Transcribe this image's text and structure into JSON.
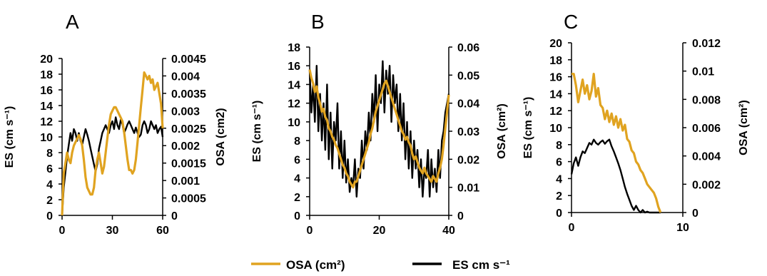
{
  "colors": {
    "osa": "#E0A320",
    "es": "#000000",
    "axis": "#000000"
  },
  "legend": {
    "osa_label": "OSA (cm²)",
    "es_label": "ES cm s⁻¹"
  },
  "chart_data": [
    {
      "type": "line",
      "panel_label": "A",
      "xlabel": "",
      "ylabel_left": "ES (cm s⁻¹)",
      "ylabel_right": "OSA (cm2)",
      "xlim": [
        0,
        60
      ],
      "ylim_left": [
        0,
        20
      ],
      "ylim_right": [
        0,
        0.0045
      ],
      "x_ticks": [
        "0",
        "30",
        "60"
      ],
      "y_left_ticks": [
        "0",
        "2",
        "4",
        "6",
        "8",
        "10",
        "12",
        "14",
        "16",
        "18",
        "20"
      ],
      "y_right_ticks": [
        "0",
        "0.0005",
        "0.001",
        "0.0015",
        "0.002",
        "0.0025",
        "0.003",
        "0.0035",
        "0.004",
        "0.0045"
      ],
      "series": [
        {
          "name": "ES cm s⁻¹",
          "axis": "left",
          "color": "#000000",
          "x": [
            0,
            1,
            2,
            3,
            4,
            5,
            6,
            7,
            8,
            9,
            10,
            11,
            12,
            13,
            14,
            15,
            16,
            17,
            18,
            19,
            20,
            21,
            22,
            23,
            24,
            25,
            26,
            27,
            28,
            29,
            30,
            31,
            32,
            33,
            34,
            35,
            36,
            37,
            38,
            39,
            40,
            41,
            42,
            43,
            44,
            45,
            46,
            47,
            48,
            49,
            50,
            51,
            52,
            53,
            54,
            55,
            56,
            57,
            58,
            59,
            60
          ],
          "y": [
            0,
            3.5,
            5.5,
            7.5,
            9,
            10.5,
            9.5,
            11,
            10.5,
            9.5,
            10.5,
            9.5,
            9.0,
            10.0,
            11.0,
            10.3,
            9.5,
            8.5,
            7.5,
            6.5,
            5.6,
            6.5,
            8.5,
            9.5,
            10.5,
            11.0,
            11.5,
            11.0,
            10.5,
            11.5,
            12.0,
            11.0,
            12.5,
            11.5,
            11.0,
            12.2,
            11.6,
            10.5,
            11.0,
            11.6,
            12.0,
            11.5,
            11.0,
            10.5,
            11.2,
            10.5,
            10.0,
            10.3,
            11.5,
            12.0,
            11.5,
            10.5,
            11.0,
            12.0,
            11.5,
            11.0,
            11.5,
            10.5,
            11.0,
            11.3,
            10.0
          ]
        },
        {
          "name": "OSA (cm²)",
          "axis": "right",
          "color": "#E0A320",
          "x": [
            0,
            1,
            2,
            3,
            4,
            5,
            6,
            7,
            8,
            9,
            10,
            11,
            12,
            13,
            14,
            15,
            16,
            17,
            18,
            19,
            20,
            21,
            22,
            23,
            24,
            25,
            26,
            27,
            28,
            29,
            30,
            31,
            32,
            33,
            34,
            35,
            36,
            37,
            38,
            39,
            40,
            41,
            42,
            43,
            44,
            45,
            46,
            47,
            48,
            49,
            50,
            51,
            52,
            53,
            54,
            55,
            56,
            57,
            58,
            59,
            60
          ],
          "y": [
            0,
            0.0012,
            0.0015,
            0.0018,
            0.0016,
            0.0015,
            0.0018,
            0.002,
            0.0021,
            0.0022,
            0.0023,
            0.0022,
            0.002,
            0.0016,
            0.0011,
            0.0008,
            0.0007,
            0.0006,
            0.0006,
            0.0008,
            0.0013,
            0.0016,
            0.0018,
            0.0015,
            0.0012,
            0.0014,
            0.0018,
            0.0022,
            0.0026,
            0.0029,
            0.003,
            0.0031,
            0.0031,
            0.003,
            0.0029,
            0.0028,
            0.0027,
            0.0024,
            0.002,
            0.0016,
            0.0013,
            0.0013,
            0.0012,
            0.0013,
            0.0016,
            0.0021,
            0.0026,
            0.0031,
            0.0036,
            0.0041,
            0.004,
            0.0039,
            0.004,
            0.0038,
            0.0039,
            0.0036,
            0.0037,
            0.0038,
            0.0035,
            0.0032,
            0.0025
          ]
        }
      ]
    },
    {
      "type": "line",
      "panel_label": "B",
      "xlabel": "",
      "ylabel_left": "ES (cm s⁻¹)",
      "ylabel_right": "OSA (cm²)",
      "xlim": [
        0,
        40
      ],
      "ylim_left": [
        0,
        18
      ],
      "ylim_right": [
        0,
        0.06
      ],
      "x_ticks": [
        "0",
        "20",
        "40"
      ],
      "y_left_ticks": [
        "0",
        "2",
        "4",
        "6",
        "8",
        "10",
        "12",
        "14",
        "16",
        "18"
      ],
      "y_right_ticks": [
        "0",
        "0.01",
        "0.02",
        "0.03",
        "0.04",
        "0.05",
        "0.06"
      ],
      "series": [
        {
          "name": "ES cm s⁻¹",
          "axis": "left",
          "color": "#000000",
          "x": [
            0,
            0.5,
            1,
            1.5,
            2,
            2.5,
            3,
            3.5,
            4,
            4.5,
            5,
            5.5,
            6,
            6.5,
            7,
            7.5,
            8,
            8.5,
            9,
            9.5,
            10,
            10.5,
            11,
            11.5,
            12,
            12.5,
            13,
            13.5,
            14,
            14.5,
            15,
            15.5,
            16,
            16.5,
            17,
            17.5,
            18,
            18.5,
            19,
            19.5,
            20,
            20.5,
            21,
            21.5,
            22,
            22.5,
            23,
            23.5,
            24,
            24.5,
            25,
            25.5,
            26,
            26.5,
            27,
            27.5,
            28,
            28.5,
            29,
            29.5,
            30,
            30.5,
            31,
            31.5,
            32,
            32.5,
            33,
            33.5,
            34,
            34.5,
            35,
            35.5,
            36,
            36.5,
            37,
            37.5,
            38,
            38.5,
            39,
            39.5,
            40
          ],
          "y": [
            15.5,
            11,
            14,
            10,
            16,
            9,
            13,
            8,
            12,
            7,
            14,
            6,
            11,
            5,
            10,
            8,
            12,
            5,
            9,
            4,
            8,
            3.5,
            6,
            2.5,
            4,
            3,
            6,
            2,
            5,
            4,
            8,
            5,
            9,
            7,
            11,
            8,
            13,
            10,
            15,
            9,
            14,
            12,
            16.5,
            11,
            15.5,
            13,
            16,
            10,
            15,
            12,
            14,
            9,
            13,
            8,
            12,
            6,
            10,
            5,
            9,
            4,
            8,
            5,
            7,
            3,
            6,
            2,
            5,
            4,
            7,
            2,
            6,
            3,
            5,
            2.5,
            7,
            4,
            8,
            9,
            11,
            12,
            13
          ]
        },
        {
          "name": "OSA (cm²)",
          "axis": "right",
          "color": "#E0A320",
          "x": [
            0,
            0.5,
            1,
            1.5,
            2,
            2.5,
            3,
            3.5,
            4,
            4.5,
            5,
            5.5,
            6,
            6.5,
            7,
            7.5,
            8,
            8.5,
            9,
            9.5,
            10,
            10.5,
            11,
            11.5,
            12,
            12.5,
            13,
            13.5,
            14,
            14.5,
            15,
            15.5,
            16,
            16.5,
            17,
            17.5,
            18,
            18.5,
            19,
            19.5,
            20,
            20.5,
            21,
            21.5,
            22,
            22.5,
            23,
            23.5,
            24,
            24.5,
            25,
            25.5,
            26,
            26.5,
            27,
            27.5,
            28,
            28.5,
            29,
            29.5,
            30,
            30.5,
            31,
            31.5,
            32,
            32.5,
            33,
            33.5,
            34,
            34.5,
            35,
            35.5,
            36,
            36.5,
            37,
            37.5,
            38,
            38.5,
            39,
            39.5,
            40
          ],
          "y": [
            0.052,
            0.049,
            0.047,
            0.044,
            0.046,
            0.042,
            0.04,
            0.037,
            0.038,
            0.035,
            0.034,
            0.031,
            0.03,
            0.028,
            0.027,
            0.025,
            0.024,
            0.022,
            0.02,
            0.018,
            0.017,
            0.015,
            0.014,
            0.012,
            0.011,
            0.01,
            0.012,
            0.012,
            0.014,
            0.016,
            0.018,
            0.02,
            0.022,
            0.024,
            0.026,
            0.029,
            0.031,
            0.034,
            0.037,
            0.039,
            0.041,
            0.043,
            0.045,
            0.047,
            0.048,
            0.046,
            0.044,
            0.042,
            0.04,
            0.038,
            0.036,
            0.034,
            0.032,
            0.03,
            0.029,
            0.027,
            0.028,
            0.026,
            0.025,
            0.022,
            0.02,
            0.021,
            0.019,
            0.017,
            0.016,
            0.015,
            0.017,
            0.015,
            0.014,
            0.013,
            0.012,
            0.014,
            0.013,
            0.012,
            0.015,
            0.017,
            0.02,
            0.025,
            0.031,
            0.037,
            0.043
          ]
        }
      ]
    },
    {
      "type": "line",
      "panel_label": "C",
      "xlabel": "",
      "ylabel_left": "ES (cm s⁻¹)",
      "ylabel_right": "OSA (cm²)",
      "xlim": [
        0,
        10
      ],
      "ylim_left": [
        0,
        20
      ],
      "ylim_right": [
        0,
        0.012
      ],
      "x_ticks": [
        "0",
        "10"
      ],
      "y_left_ticks": [
        "0",
        "2",
        "4",
        "6",
        "8",
        "10",
        "12",
        "14",
        "16",
        "18",
        "20"
      ],
      "y_right_ticks": [
        "0",
        "0.002",
        "0.004",
        "0.006",
        "0.008",
        "0.01",
        "0.012"
      ],
      "series": [
        {
          "name": "ES cm s⁻¹",
          "axis": "left",
          "color": "#000000",
          "x": [
            0,
            0.2,
            0.4,
            0.6,
            0.8,
            1.0,
            1.2,
            1.4,
            1.6,
            1.8,
            2.0,
            2.2,
            2.4,
            2.6,
            2.8,
            3.0,
            3.2,
            3.4,
            3.6,
            3.8,
            4.0,
            4.2,
            4.4,
            4.6,
            4.8,
            5.0,
            5.2,
            5.4,
            5.6,
            5.8,
            6.0,
            6.2,
            6.4,
            6.6,
            6.8,
            7.0,
            7.2,
            7.4,
            7.6,
            7.8,
            8.0
          ],
          "y": [
            4.5,
            5.8,
            6.5,
            5.5,
            6.5,
            7.2,
            7.0,
            7.6,
            8.2,
            8.0,
            8.6,
            8.2,
            8.0,
            8.3,
            8.5,
            8.1,
            8.4,
            8.6,
            7.8,
            7.2,
            6.5,
            5.8,
            5.0,
            4.0,
            3.0,
            2.2,
            1.5,
            0.8,
            0.3,
            0.8,
            0.3,
            0,
            0.3,
            0,
            0.1,
            0,
            0,
            0,
            0,
            0,
            0
          ]
        },
        {
          "name": "OSA (cm²)",
          "axis": "right",
          "color": "#E0A320",
          "x": [
            0,
            0.2,
            0.4,
            0.6,
            0.8,
            1.0,
            1.2,
            1.4,
            1.6,
            1.8,
            2.0,
            2.2,
            2.4,
            2.6,
            2.8,
            3.0,
            3.2,
            3.4,
            3.6,
            3.8,
            4.0,
            4.2,
            4.4,
            4.6,
            4.8,
            5.0,
            5.2,
            5.4,
            5.6,
            5.8,
            6.0,
            6.2,
            6.4,
            6.6,
            6.8,
            7.0,
            7.2,
            7.4,
            7.6,
            7.8,
            8.0
          ],
          "y": [
            0.0098,
            0.0098,
            0.009,
            0.0078,
            0.0086,
            0.0094,
            0.0084,
            0.009,
            0.008,
            0.0086,
            0.0098,
            0.0082,
            0.0088,
            0.0076,
            0.0074,
            0.0066,
            0.0072,
            0.0064,
            0.007,
            0.0062,
            0.0068,
            0.006,
            0.0066,
            0.0058,
            0.0062,
            0.0052,
            0.005,
            0.0044,
            0.0042,
            0.0036,
            0.0034,
            0.003,
            0.0028,
            0.0024,
            0.002,
            0.0018,
            0.0016,
            0.0014,
            0.001,
            0.0004,
            0
          ]
        }
      ]
    }
  ]
}
